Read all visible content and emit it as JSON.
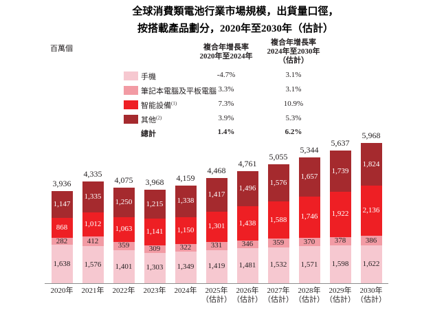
{
  "title": {
    "line1": "全球消費類電池行業市場規模，出貨量口徑，",
    "line2": "按搭載產品劃分，2020年至2030年（估計）"
  },
  "legend": {
    "unit": "百萬個",
    "col1_header": [
      "複合年增長率",
      "2020年至2024年"
    ],
    "col2_header": [
      "複合年增長率",
      "2024年至2030年",
      "（估計）"
    ],
    "rows": [
      {
        "label": "手機",
        "sup": "",
        "cagr_2020_2024": "-4.7%",
        "cagr_2024_2030": "3.1%",
        "color": "#f6c8d0"
      },
      {
        "label": "筆記本電腦及平板電腦",
        "sup": "",
        "cagr_2020_2024": "3.3%",
        "cagr_2024_2030": "3.1%",
        "color": "#f29ba4"
      },
      {
        "label": "智能設備",
        "sup": "(1)",
        "cagr_2020_2024": "7.3%",
        "cagr_2024_2030": "10.9%",
        "color": "#ee1f24"
      },
      {
        "label": "其他",
        "sup": "(2)",
        "cagr_2020_2024": "3.9%",
        "cagr_2024_2030": "5.3%",
        "color": "#a52a2e"
      }
    ],
    "total_row": {
      "label": "總計",
      "cagr_2020_2024": "1.4%",
      "cagr_2024_2030": "6.2%"
    }
  },
  "chart_data": {
    "type": "bar",
    "stacked": true,
    "title": "全球消費類電池行業市場規模，出貨量口徑，按搭載產品劃分，2020年至2030年（估計）",
    "ylabel": "百萬個",
    "xlabel": "",
    "ylim": [
      0,
      5968
    ],
    "grid": false,
    "legend_position": "top",
    "categories": [
      "2020年",
      "2021年",
      "2022年",
      "2023年",
      "2024年",
      "2025年",
      "2026年",
      "2027年",
      "2028年",
      "2029年",
      "2030年"
    ],
    "category_suffix": [
      "",
      "",
      "",
      "",
      "",
      "（估計）",
      "（估計）",
      "（估計）",
      "（估計）",
      "（估計）",
      "（估計）"
    ],
    "series": [
      {
        "name": "手機",
        "color": "#f6c8d0",
        "label_color": "#231f20",
        "values": [
          1638,
          1576,
          1401,
          1303,
          1349,
          1419,
          1481,
          1532,
          1571,
          1598,
          1622
        ]
      },
      {
        "name": "筆記本電腦及平板電腦",
        "color": "#f29ba4",
        "label_color": "#231f20",
        "values": [
          282,
          412,
          359,
          309,
          322,
          331,
          346,
          359,
          370,
          378,
          386
        ]
      },
      {
        "name": "智能設備",
        "color": "#ee1f24",
        "label_color": "#ffffff",
        "values": [
          868,
          1012,
          1063,
          1141,
          1150,
          1301,
          1438,
          1588,
          1746,
          1922,
          2136
        ]
      },
      {
        "name": "其他",
        "color": "#a52a2e",
        "label_color": "#ffffff",
        "values": [
          1147,
          1335,
          1250,
          1215,
          1338,
          1417,
          1496,
          1576,
          1657,
          1739,
          1824
        ]
      }
    ],
    "totals": [
      3936,
      4335,
      4075,
      3968,
      4159,
      4468,
      4761,
      5055,
      5344,
      5637,
      5968
    ]
  }
}
